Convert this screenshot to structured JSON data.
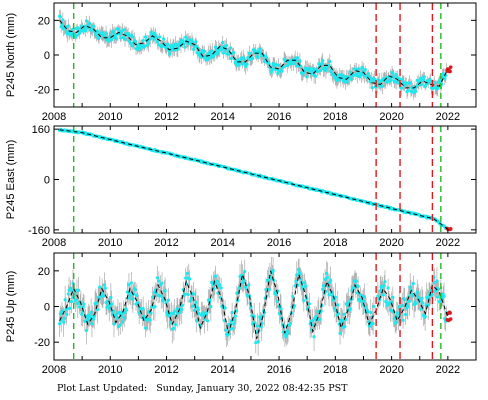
{
  "footer": {
    "label": "Plot Last Updated:",
    "date": "Sunday, January 30, 2022 08:42:35 PST"
  },
  "colors": {
    "data": "#1ce8ef",
    "errorbar": "#a8a8a8",
    "model": "#000000",
    "recent": "#e0181c",
    "green_line": "#22bb22",
    "red_line": "#e0181c"
  },
  "chart_data": [
    {
      "type": "scatter",
      "ylabel": "P245 North (mm)",
      "xlim": [
        2008,
        2023
      ],
      "ylim": [
        -30,
        30
      ],
      "xticks": [
        2008,
        2010,
        2012,
        2014,
        2016,
        2018,
        2020,
        2022
      ],
      "yticks": [
        20,
        0,
        -20
      ],
      "vlines_green": [
        2008.7,
        2021.75
      ],
      "vlines_red": [
        2019.45,
        2020.3,
        2021.45
      ],
      "series": [
        {
          "x": [
            2008.2,
            2008.5,
            2008.8,
            2009.1,
            2009.4,
            2009.7,
            2010.0,
            2010.3,
            2010.6,
            2010.9,
            2011.2,
            2011.5,
            2011.8,
            2012.1,
            2012.4,
            2012.7,
            2013.0,
            2013.3,
            2013.6,
            2013.9,
            2014.2,
            2014.5,
            2014.8,
            2015.1,
            2015.4,
            2015.7,
            2016.0,
            2016.3,
            2016.6,
            2016.9,
            2017.2,
            2017.5,
            2017.8,
            2018.1,
            2018.4,
            2018.7,
            2019.0,
            2019.3,
            2019.6,
            2019.9,
            2020.2,
            2020.5,
            2020.8,
            2021.1,
            2021.4,
            2021.7,
            2022.0
          ],
          "y": [
            20,
            14,
            13,
            17,
            15,
            10,
            10,
            13,
            11,
            6,
            7,
            11,
            8,
            3,
            4,
            8,
            6,
            -1,
            0,
            5,
            3,
            -4,
            -4,
            1,
            1,
            -7,
            -8,
            -3,
            -3,
            -10,
            -11,
            -6,
            -6,
            -13,
            -14,
            -9,
            -10,
            -16,
            -17,
            -12,
            -14,
            -19,
            -19,
            -15,
            -17,
            -18,
            -8
          ]
        }
      ]
    },
    {
      "type": "scatter",
      "ylabel": "P245 East (mm)",
      "xlim": [
        2008,
        2023
      ],
      "ylim": [
        -170,
        170
      ],
      "xticks": [
        2008,
        2010,
        2012,
        2014,
        2016,
        2018,
        2020,
        2022
      ],
      "yticks": [
        160,
        0,
        -160
      ],
      "vlines_green": [
        2008.7,
        2021.75
      ],
      "vlines_red": [
        2019.45,
        2020.3,
        2021.45
      ],
      "series": [
        {
          "x": [
            2008.2,
            2009.0,
            2010.0,
            2011.0,
            2012.0,
            2013.0,
            2014.0,
            2015.0,
            2016.0,
            2017.0,
            2018.0,
            2019.0,
            2020.0,
            2021.0,
            2021.5,
            2022.0
          ],
          "y": [
            158,
            149,
            127,
            105,
            84,
            62,
            40,
            18,
            -4,
            -26,
            -48,
            -70,
            -92,
            -114,
            -125,
            -158
          ]
        }
      ]
    },
    {
      "type": "scatter",
      "ylabel": "P245 Up (mm)",
      "xlim": [
        2008,
        2023
      ],
      "ylim": [
        -30,
        30
      ],
      "xticks": [
        2008,
        2010,
        2012,
        2014,
        2016,
        2018,
        2020,
        2022
      ],
      "yticks": [
        20,
        0,
        -20
      ],
      "vlines_green": [
        2008.7,
        2021.75
      ],
      "vlines_red": [
        2019.45,
        2020.3,
        2021.45
      ],
      "series": [
        {
          "x": [
            2008.2,
            2008.45,
            2008.7,
            2008.95,
            2009.2,
            2009.45,
            2009.7,
            2009.95,
            2010.2,
            2010.45,
            2010.7,
            2010.95,
            2011.2,
            2011.45,
            2011.7,
            2011.95,
            2012.2,
            2012.45,
            2012.7,
            2012.95,
            2013.2,
            2013.45,
            2013.7,
            2013.95,
            2014.2,
            2014.45,
            2014.7,
            2014.95,
            2015.2,
            2015.45,
            2015.7,
            2015.95,
            2016.2,
            2016.45,
            2016.7,
            2016.95,
            2017.2,
            2017.45,
            2017.7,
            2017.95,
            2018.2,
            2018.45,
            2018.7,
            2018.95,
            2019.2,
            2019.45,
            2019.7,
            2019.95,
            2020.2,
            2020.45,
            2020.7,
            2020.95,
            2021.2,
            2021.45,
            2021.7,
            2022.0
          ],
          "y": [
            -8,
            0,
            10,
            2,
            -10,
            -4,
            10,
            3,
            -9,
            -3,
            10,
            3,
            -8,
            -2,
            12,
            4,
            -10,
            -2,
            14,
            5,
            -12,
            -3,
            14,
            5,
            -15,
            -2,
            18,
            6,
            -18,
            -4,
            20,
            7,
            -15,
            -3,
            18,
            6,
            -14,
            -3,
            14,
            5,
            -12,
            -2,
            12,
            5,
            -10,
            -2,
            10,
            4,
            -8,
            -1,
            9,
            4,
            -4,
            12,
            8,
            -6
          ]
        }
      ]
    }
  ]
}
